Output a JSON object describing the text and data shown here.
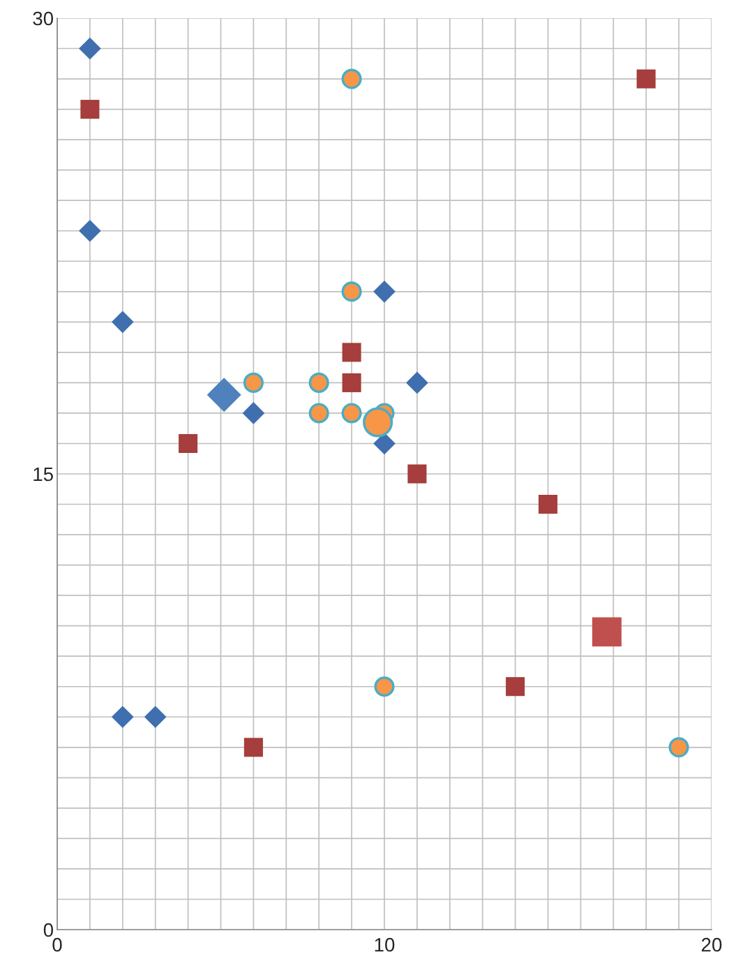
{
  "chart_data": {
    "type": "scatter",
    "xlim": [
      0,
      20
    ],
    "ylim": [
      0,
      30
    ],
    "grid": true,
    "xticks": [
      0,
      {
        "value": 1,
        "label": null
      },
      {
        "value": 2,
        "label": null
      },
      {
        "value": 3,
        "label": null
      },
      {
        "value": 4,
        "label": null
      },
      {
        "value": 5,
        "label": null
      },
      {
        "value": 6,
        "label": null
      },
      {
        "value": 7,
        "label": null
      },
      {
        "value": 8,
        "label": null
      },
      {
        "value": 9,
        "label": null
      },
      10,
      {
        "value": 11,
        "label": null
      },
      {
        "value": 12,
        "label": null
      },
      {
        "value": 13,
        "label": null
      },
      {
        "value": 14,
        "label": null
      },
      {
        "value": 15,
        "label": null
      },
      {
        "value": 16,
        "label": null
      },
      {
        "value": 17,
        "label": null
      },
      {
        "value": 18,
        "label": null
      },
      {
        "value": 19,
        "label": null
      },
      20
    ],
    "yticks": [
      0,
      {
        "value": 1,
        "label": null
      },
      {
        "value": 2,
        "label": null
      },
      {
        "value": 3,
        "label": null
      },
      {
        "value": 4,
        "label": null
      },
      {
        "value": 5,
        "label": null
      },
      {
        "value": 6,
        "label": null
      },
      {
        "value": 7,
        "label": null
      },
      {
        "value": 8,
        "label": null
      },
      {
        "value": 9,
        "label": null
      },
      {
        "value": 10,
        "label": null
      },
      {
        "value": 11,
        "label": null
      },
      {
        "value": 12,
        "label": null
      },
      {
        "value": 13,
        "label": null
      },
      {
        "value": 14,
        "label": null
      },
      15,
      {
        "value": 16,
        "label": null
      },
      {
        "value": 17,
        "label": null
      },
      {
        "value": 18,
        "label": null
      },
      {
        "value": 19,
        "label": null
      },
      {
        "value": 20,
        "label": null
      },
      {
        "value": 21,
        "label": null
      },
      {
        "value": 22,
        "label": null
      },
      {
        "value": 23,
        "label": null
      },
      {
        "value": 24,
        "label": null
      },
      {
        "value": 25,
        "label": null
      },
      {
        "value": 26,
        "label": null
      },
      {
        "value": 27,
        "label": null
      },
      {
        "value": 28,
        "label": null
      },
      {
        "value": 29,
        "label": null
      },
      30
    ],
    "series": [
      {
        "color": "#3f6fae",
        "marker": "diamond",
        "x": [
          1,
          1,
          2,
          10,
          11,
          6,
          10,
          2,
          3
        ],
        "values": [
          29,
          23,
          20,
          21,
          18,
          17,
          16,
          7,
          7
        ]
      },
      {
        "color": "#a53e3c",
        "marker": "square",
        "x": [
          1,
          18,
          9,
          9,
          4,
          11,
          15,
          14,
          6
        ],
        "values": [
          27,
          28,
          19,
          18,
          16,
          15,
          14,
          8,
          6
        ]
      },
      {
        "color": "#f79646",
        "marker": "circle",
        "x": [
          9,
          9,
          6,
          8,
          8,
          9,
          10,
          10,
          19
        ],
        "values": [
          28,
          21,
          18,
          18,
          17,
          17,
          17,
          8,
          6
        ]
      },
      {
        "type": "bubble",
        "color": "#4f81bd",
        "marker": "diamond",
        "x": [
          5.1
        ],
        "values": [
          17.6
        ]
      },
      {
        "type": "bubble",
        "color": "#f79646",
        "marker": "circle",
        "x": [
          9.8
        ],
        "values": [
          16.7
        ]
      },
      {
        "type": "bubble",
        "color": "#c0504d",
        "marker": "square",
        "x": [
          16.8
        ],
        "values": [
          9.8
        ]
      }
    ]
  }
}
